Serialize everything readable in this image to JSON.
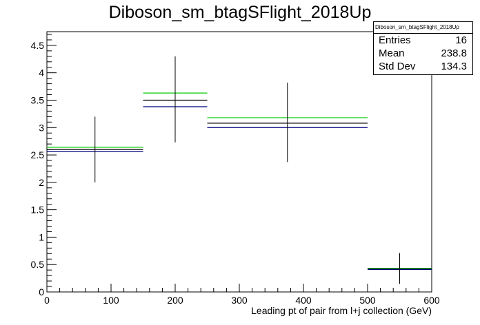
{
  "chart_data": {
    "type": "histogram",
    "title": "Diboson_sm_btagSFlight_2018Up",
    "xlabel": "Leading pt of pair from l+j collection (GeV)",
    "ylabel": "",
    "xlim": [
      0,
      600
    ],
    "ylim": [
      0,
      4.75
    ],
    "x_ticks": [
      0,
      100,
      200,
      300,
      400,
      500,
      600
    ],
    "y_ticks": [
      0,
      0.5,
      1,
      1.5,
      2,
      2.5,
      3,
      3.5,
      4,
      4.5
    ],
    "y_tick_labels": [
      "0",
      "0.5",
      "1",
      "1.5",
      "2",
      "2.5",
      "3",
      "3.5",
      "4",
      "4.5"
    ],
    "grid": false,
    "bins": [
      {
        "xlow": 0,
        "xhigh": 150,
        "center": 75,
        "value": 2.6,
        "err_low": 2.0,
        "err_high": 3.2
      },
      {
        "xlow": 150,
        "xhigh": 250,
        "center": 200,
        "value": 3.5,
        "err_low": 2.73,
        "err_high": 4.3
      },
      {
        "xlow": 250,
        "xhigh": 500,
        "center": 375,
        "value": 3.08,
        "err_low": 2.37,
        "err_high": 3.82
      },
      {
        "xlow": 500,
        "xhigh": 600,
        "center": 550,
        "value": 0.42,
        "err_low": 0.15,
        "err_high": 0.71
      }
    ],
    "series": [
      {
        "color": "#00cc00",
        "values": [
          2.64,
          3.63,
          3.18,
          0.43
        ]
      },
      {
        "color": "#000000",
        "values": [
          2.6,
          3.5,
          3.08,
          0.42
        ]
      },
      {
        "color": "#000080",
        "values": [
          2.56,
          3.38,
          3.0,
          0.41
        ]
      }
    ]
  },
  "stats": {
    "name": "Diboson_sm_btagSFlight_2018Up",
    "entries_label": "Entries",
    "entries": "16",
    "mean_label": "Mean",
    "mean": "238.8",
    "stddev_label": "Std Dev",
    "stddev": "134.3"
  }
}
